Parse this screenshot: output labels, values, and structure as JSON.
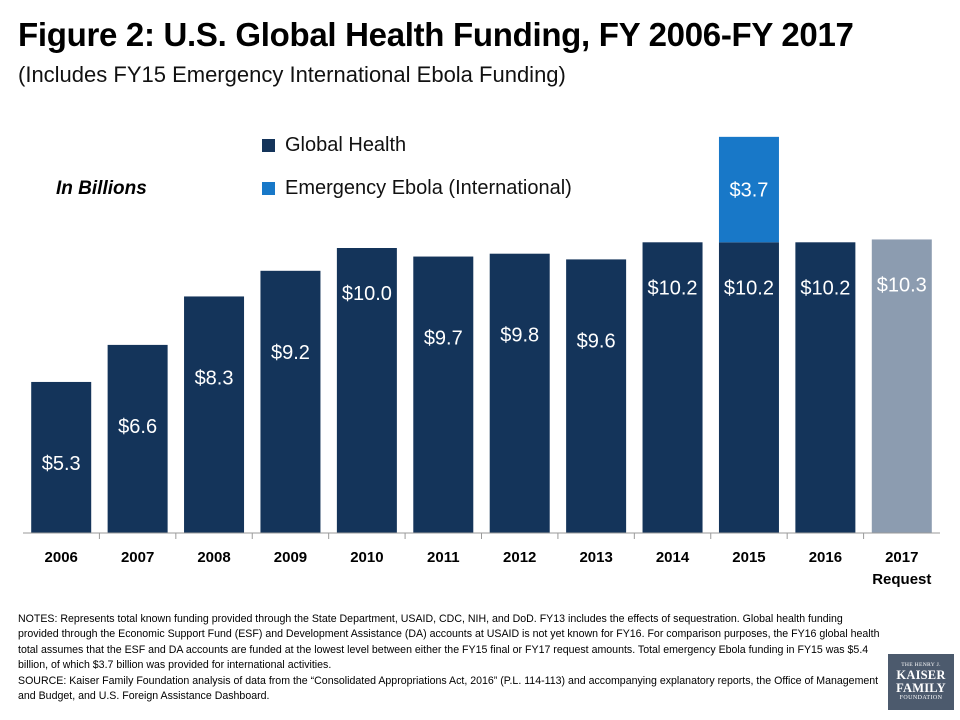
{
  "title": "Figure 2: U.S. Global Health Funding, FY 2006-FY 2017",
  "subtitle": "(Includes FY15 Emergency International Ebola Funding)",
  "unit_label": "In Billions",
  "legend": [
    {
      "label": "Global Health",
      "color": "#14345a"
    },
    {
      "label": "Emergency Ebola (International)",
      "color": "#1878c8"
    }
  ],
  "colors": {
    "global_health": "#14345a",
    "ebola": "#1878c8",
    "request": "#8c9cb0"
  },
  "chart_data": {
    "type": "bar",
    "stacked": true,
    "title": "Figure 2: U.S. Global Health Funding, FY 2006-FY 2017",
    "subtitle": "(Includes FY15 Emergency International Ebola Funding)",
    "ylabel": "In Billions",
    "xlabel": "",
    "categories": [
      "2006",
      "2007",
      "2008",
      "2009",
      "2010",
      "2011",
      "2012",
      "2013",
      "2014",
      "2015",
      "2016",
      "2017"
    ],
    "category_sublabels": [
      "",
      "",
      "",
      "",
      "",
      "",
      "",
      "",
      "",
      "",
      "",
      "Request"
    ],
    "series": [
      {
        "name": "Global Health",
        "values": [
          5.3,
          6.6,
          8.3,
          9.2,
          10.0,
          9.7,
          9.8,
          9.6,
          10.2,
          10.2,
          10.2,
          10.3
        ],
        "labels": [
          "$5.3",
          "$6.6",
          "$8.3",
          "$9.2",
          "$10.0",
          "$9.7",
          "$9.8",
          "$9.6",
          "$10.2",
          "$10.2",
          "$10.2",
          "$10.3"
        ]
      },
      {
        "name": "Emergency Ebola (International)",
        "values": [
          0,
          0,
          0,
          0,
          0,
          0,
          0,
          0,
          0,
          3.7,
          0,
          0
        ],
        "labels": [
          "",
          "",
          "",
          "",
          "",
          "",
          "",
          "",
          "",
          "$3.7",
          "",
          ""
        ]
      }
    ],
    "highlight_category": "2017",
    "ylim": [
      0,
      14
    ],
    "grid": false,
    "legend_position": "top"
  },
  "notes": [
    "NOTES: Represents total known funding provided through the State Department, USAID, CDC, NIH, and DoD. FY13 includes the effects of sequestration. Global health funding provided through the Economic Support Fund (ESF) and Development Assistance (DA) accounts at USAID is not yet known for FY16. For comparison purposes, the FY16 global health total assumes that the ESF and DA accounts are funded at the lowest level between either the FY15 final or FY17 request amounts. Total emergency Ebola funding in FY15 was $5.4 billion, of which $3.7 billion was provided for international activities.",
    "SOURCE: Kaiser Family Foundation analysis of data from the “Consolidated Appropriations Act, 2016” (P.L. 114-113) and accompanying explanatory reports, the Office of Management and Budget, and U.S. Foreign Assistance Dashboard."
  ],
  "logo": {
    "line1": "THE HENRY J.",
    "line2": "KAISER",
    "line3": "FAMILY",
    "line4": "FOUNDATION"
  }
}
